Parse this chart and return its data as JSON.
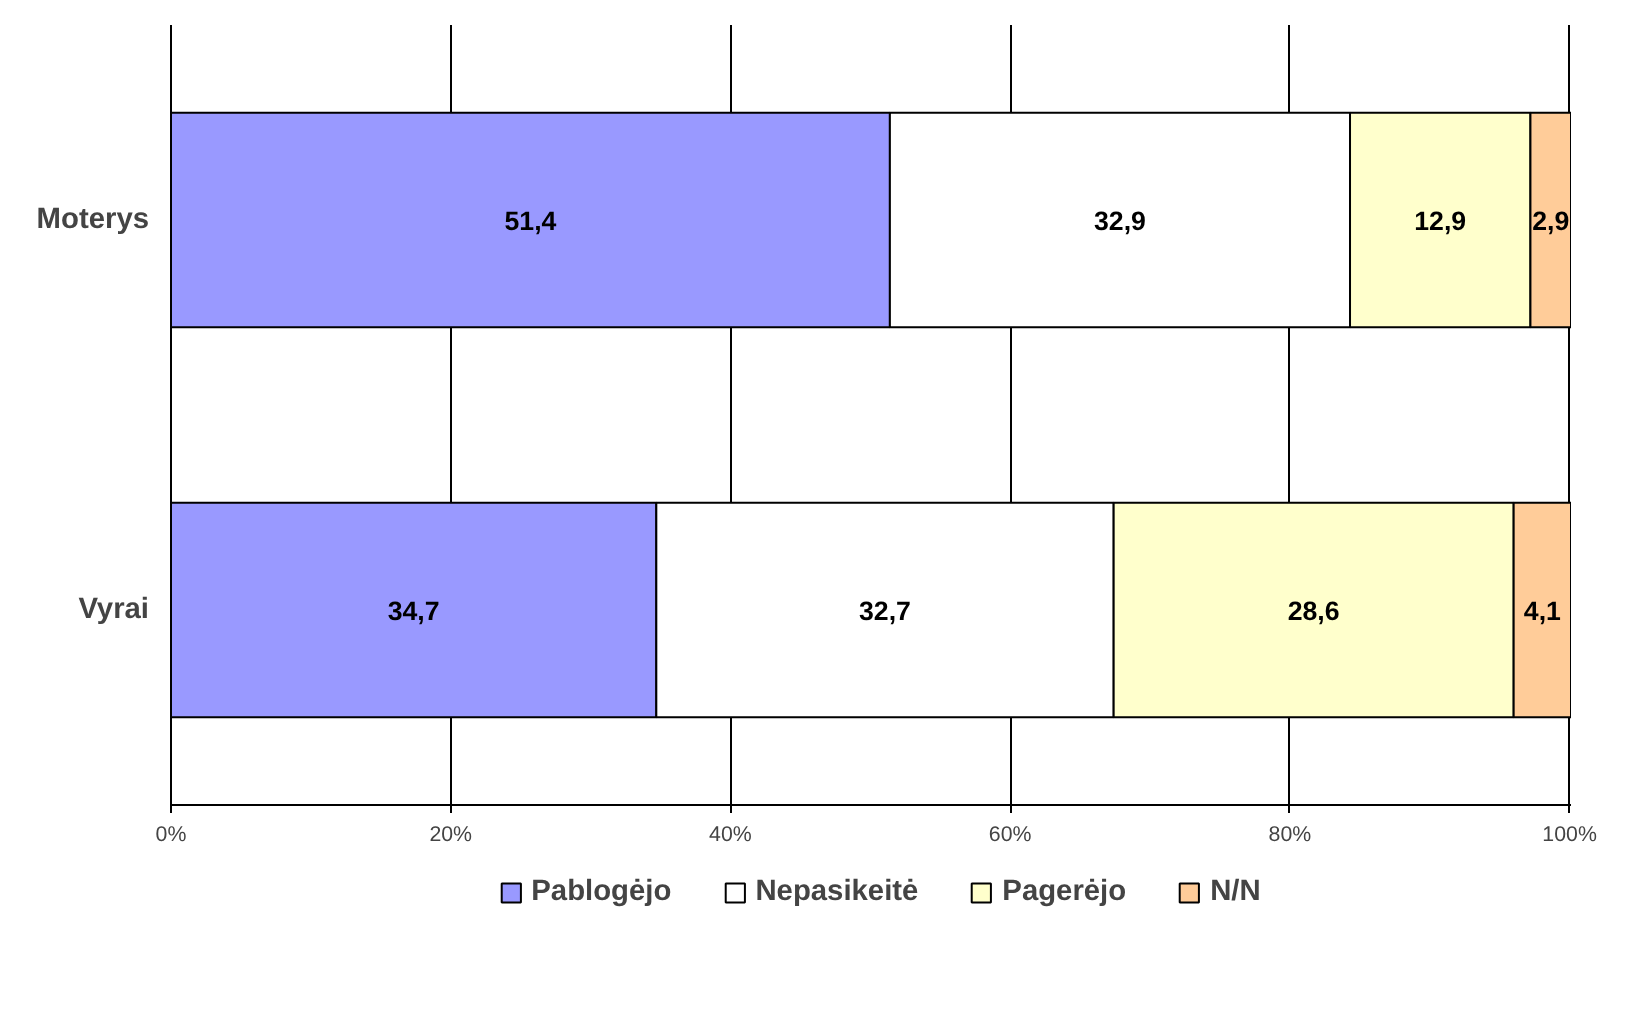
{
  "chart_data": {
    "type": "bar",
    "orientation": "horizontal",
    "stacked": true,
    "categories": [
      "Moterys",
      "Vyrai"
    ],
    "series": [
      {
        "name": "Pablogėjo",
        "color": "#9999ff",
        "values": [
          51.4,
          34.7
        ],
        "value_labels": [
          "51,4",
          "34,7"
        ]
      },
      {
        "name": "Nepasikeitė",
        "color": "#ffffff",
        "values": [
          32.9,
          32.7
        ],
        "value_labels": [
          "32,9",
          "32,7"
        ]
      },
      {
        "name": "Pagerėjo",
        "color": "#ffffcc",
        "values": [
          12.9,
          28.6
        ],
        "value_labels": [
          "12,9",
          "28,6"
        ]
      },
      {
        "name": "N/N",
        "color": "#ffcc99",
        "values": [
          2.9,
          4.1
        ],
        "value_labels": [
          "2,9",
          "4,1"
        ]
      }
    ],
    "xlim": [
      0,
      100.1
    ],
    "xticks": [
      {
        "value": 0,
        "label": "0%"
      },
      {
        "value": 20,
        "label": "20%"
      },
      {
        "value": 40,
        "label": "40%"
      },
      {
        "value": 60,
        "label": "60%"
      },
      {
        "value": 80,
        "label": "80%"
      },
      {
        "value": 100,
        "label": "100%"
      }
    ],
    "grid": "x",
    "legend": "bottom"
  }
}
